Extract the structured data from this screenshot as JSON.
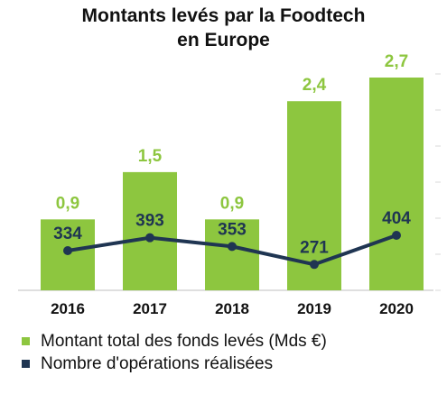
{
  "chart_data": {
    "type": "bar",
    "title_lines": [
      "Montants levés par la Foodtech",
      "en Europe"
    ],
    "categories": [
      "2016",
      "2017",
      "2018",
      "2019",
      "2020"
    ],
    "series": [
      {
        "name": "Montant total des fonds levés (Mds €)",
        "type": "bar",
        "values": [
          0.9,
          1.5,
          0.9,
          2.4,
          2.7
        ],
        "labels": [
          "0,9",
          "1,5",
          "0,9",
          "2,4",
          "2,7"
        ],
        "color": "#8dc63f"
      },
      {
        "name": "Nombre d'opérations réalisées",
        "type": "line",
        "values": [
          334,
          393,
          353,
          271,
          404
        ],
        "labels": [
          "334",
          "393",
          "353",
          "271",
          "404"
        ],
        "color": "#1f3552"
      }
    ],
    "grid": false,
    "legend_position": "bottom"
  }
}
